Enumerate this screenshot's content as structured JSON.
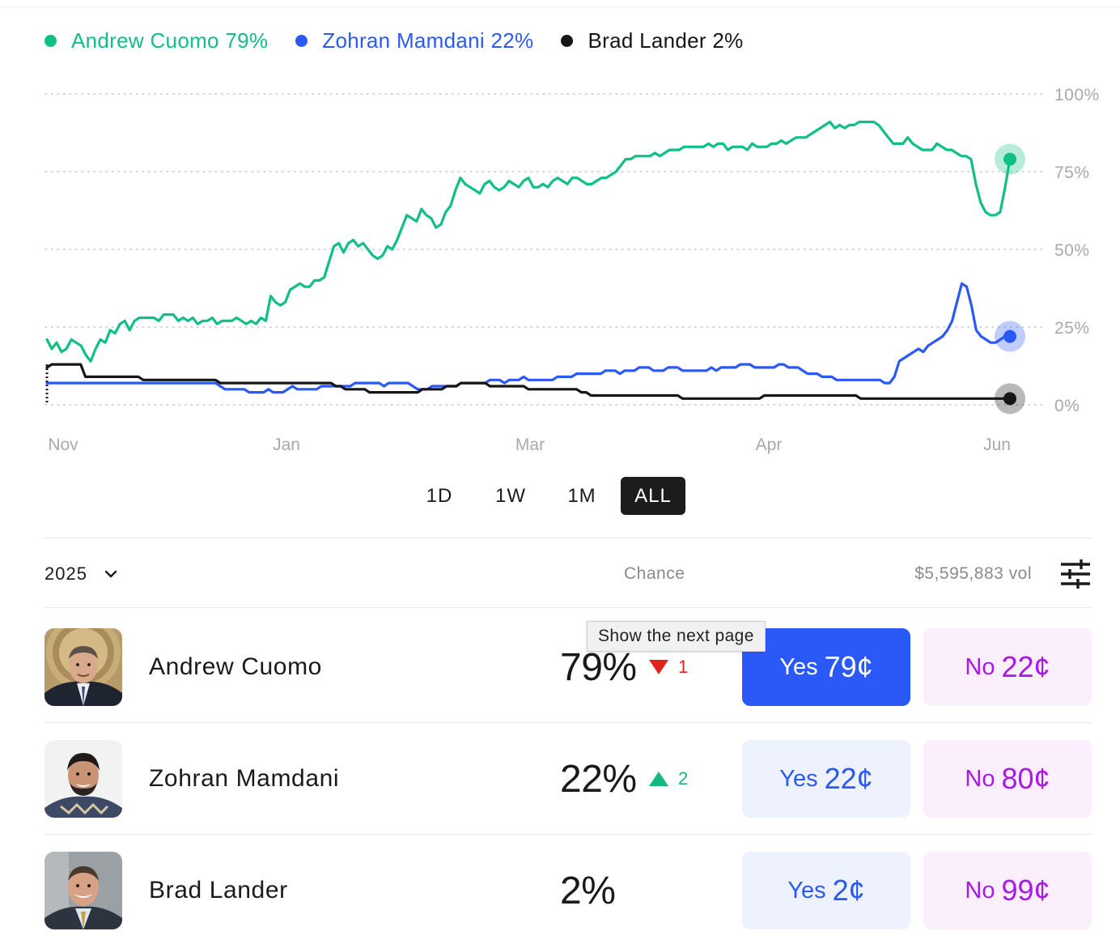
{
  "colors": {
    "green": "#0fbf83",
    "blue": "#2a59f7",
    "black": "#161616",
    "red": "#e2231a",
    "purple": "#a818e6",
    "grid": "#c8c8c8",
    "axis": "#a9a9a9"
  },
  "legend": [
    {
      "label": "Andrew Cuomo 79%",
      "color": "#0fbf83"
    },
    {
      "label": "Zohran Mamdani 22%",
      "color": "#2a59f7"
    },
    {
      "label": "Brad Lander 2%",
      "color": "#161616"
    }
  ],
  "chart_data": {
    "type": "line",
    "ylim": [
      0,
      100
    ],
    "y_ticks": [
      "100%",
      "75%",
      "50%",
      "25%",
      "0%"
    ],
    "x_ticks": [
      "Nov",
      "Jan",
      "Mar",
      "Apr",
      "Jun"
    ],
    "series": [
      {
        "name": "Andrew Cuomo",
        "color": "#0fbf83",
        "values": [
          21,
          18,
          20,
          17,
          18,
          21,
          20,
          19,
          16,
          14,
          18,
          21,
          20,
          24,
          23,
          26,
          27,
          24,
          27,
          28,
          28,
          28,
          28,
          27,
          29,
          29,
          29,
          27,
          28,
          27,
          28,
          26,
          27,
          27,
          28,
          26,
          27,
          27,
          27,
          28,
          27,
          26,
          27,
          26,
          28,
          27,
          35,
          33,
          32,
          33,
          37,
          38,
          39,
          38,
          38,
          40,
          40,
          41,
          46,
          51,
          52,
          49,
          52,
          53,
          51,
          52,
          50,
          48,
          47,
          48,
          51,
          50,
          53,
          57,
          61,
          60,
          59,
          63,
          61,
          60,
          57,
          58,
          62,
          64,
          69,
          73,
          71,
          70,
          69,
          68,
          71,
          72,
          70,
          69,
          70,
          72,
          71,
          70,
          72,
          73,
          70,
          70,
          71,
          70,
          72,
          73,
          72,
          71,
          73,
          73,
          72,
          71,
          71,
          72,
          73,
          73,
          74,
          75,
          77,
          79,
          79,
          80,
          80,
          80,
          80,
          81,
          80,
          81,
          82,
          82,
          82,
          83,
          83,
          83,
          83,
          83,
          84,
          83,
          84,
          84,
          82,
          83,
          83,
          83,
          82,
          84,
          83,
          83,
          83,
          84,
          84,
          85,
          84,
          85,
          86,
          86,
          86,
          87,
          88,
          89,
          90,
          91,
          89,
          90,
          89,
          90,
          90,
          91,
          91,
          91,
          91,
          90,
          88,
          86,
          84,
          84,
          84,
          86,
          84,
          83,
          82,
          82,
          82,
          84,
          83,
          82,
          82,
          81,
          80,
          80,
          79,
          71,
          65,
          62,
          61,
          61,
          62,
          70,
          79
        ]
      },
      {
        "name": "Zohran Mamdani",
        "color": "#2a59f7",
        "values": [
          7,
          7,
          7,
          7,
          7,
          7,
          7,
          7,
          7,
          7,
          7,
          7,
          7,
          7,
          7,
          7,
          7,
          7,
          7,
          7,
          7,
          7,
          7,
          7,
          7,
          7,
          7,
          7,
          7,
          7,
          7,
          7,
          7,
          7,
          7,
          7,
          6,
          5,
          5,
          5,
          5,
          5,
          4,
          4,
          4,
          4,
          5,
          4,
          4,
          4,
          5,
          6,
          5,
          5,
          5,
          5,
          5,
          6,
          6,
          6,
          6,
          6,
          6,
          6,
          7,
          7,
          7,
          7,
          7,
          7,
          6,
          7,
          7,
          7,
          7,
          7,
          6,
          5,
          5,
          5,
          6,
          6,
          6,
          6,
          6,
          6,
          7,
          7,
          7,
          7,
          7,
          7,
          8,
          8,
          8,
          7,
          8,
          8,
          8,
          9,
          8,
          8,
          8,
          8,
          8,
          8,
          9,
          9,
          9,
          9,
          10,
          10,
          10,
          10,
          10,
          10,
          11,
          11,
          11,
          10,
          11,
          11,
          11,
          12,
          12,
          12,
          11,
          11,
          11,
          12,
          12,
          12,
          11,
          11,
          11,
          11,
          11,
          11,
          12,
          11,
          12,
          12,
          12,
          12,
          13,
          13,
          13,
          12,
          12,
          12,
          12,
          12,
          13,
          13,
          12,
          12,
          12,
          11,
          10,
          10,
          10,
          9,
          9,
          9,
          8,
          8,
          8,
          8,
          8,
          8,
          8,
          8,
          8,
          8,
          7,
          7,
          9,
          14,
          15,
          16,
          17,
          18,
          17,
          19,
          20,
          21,
          22,
          24,
          27,
          33,
          39,
          38,
          32,
          24,
          22,
          21,
          20,
          20,
          21,
          22,
          22
        ]
      },
      {
        "name": "Brad Lander",
        "color": "#161616",
        "values": [
          12,
          13,
          13,
          13,
          13,
          13,
          13,
          13,
          9,
          9,
          9,
          9,
          9,
          9,
          9,
          9,
          9,
          9,
          9,
          9,
          8,
          8,
          8,
          8,
          8,
          8,
          8,
          8,
          8,
          8,
          8,
          8,
          8,
          8,
          8,
          8,
          7,
          7,
          7,
          7,
          7,
          7,
          7,
          7,
          7,
          7,
          7,
          7,
          7,
          7,
          7,
          7,
          7,
          7,
          7,
          7,
          7,
          7,
          7,
          7,
          6,
          6,
          5,
          5,
          5,
          5,
          5,
          4,
          4,
          4,
          4,
          4,
          4,
          4,
          4,
          4,
          4,
          4,
          5,
          5,
          5,
          5,
          5,
          6,
          6,
          6,
          7,
          7,
          7,
          7,
          7,
          7,
          6,
          6,
          6,
          6,
          6,
          6,
          6,
          6,
          5,
          5,
          5,
          5,
          5,
          5,
          5,
          5,
          5,
          5,
          5,
          4,
          4,
          3,
          3,
          3,
          3,
          3,
          3,
          3,
          3,
          3,
          3,
          3,
          3,
          3,
          3,
          3,
          3,
          3,
          3,
          3,
          2,
          2,
          2,
          2,
          2,
          2,
          2,
          2,
          2,
          2,
          2,
          2,
          2,
          2,
          2,
          2,
          2,
          3,
          3,
          3,
          3,
          3,
          3,
          3,
          3,
          3,
          3,
          3,
          3,
          3,
          3,
          3,
          3,
          3,
          3,
          3,
          3,
          2,
          2,
          2,
          2,
          2,
          2,
          2,
          2,
          2,
          2,
          2,
          2,
          2,
          2,
          2,
          2,
          2,
          2,
          2,
          2,
          2,
          2,
          2,
          2,
          2,
          2,
          2,
          2,
          2,
          2,
          2,
          2
        ]
      }
    ]
  },
  "ranges": [
    {
      "label": "1D",
      "active": false
    },
    {
      "label": "1W",
      "active": false
    },
    {
      "label": "1M",
      "active": false
    },
    {
      "label": "ALL",
      "active": true
    }
  ],
  "header": {
    "year": "2025",
    "chance": "Chance",
    "vol": "$5,595,883 vol"
  },
  "candidates": [
    {
      "name": "Andrew Cuomo",
      "pct": "79%",
      "delta": "1",
      "delta_dir": "down",
      "yes_word": "Yes",
      "yes_price": "79¢",
      "no_word": "No",
      "no_price": "22¢",
      "selected": true
    },
    {
      "name": "Zohran Mamdani",
      "pct": "22%",
      "delta": "2",
      "delta_dir": "up",
      "yes_word": "Yes",
      "yes_price": "22¢",
      "no_word": "No",
      "no_price": "80¢",
      "selected": false
    },
    {
      "name": "Brad Lander",
      "pct": "2%",
      "delta": "",
      "delta_dir": "",
      "yes_word": "Yes",
      "yes_price": "2¢",
      "no_word": "No",
      "no_price": "99¢",
      "selected": false
    }
  ],
  "tooltip": "Show the next page"
}
